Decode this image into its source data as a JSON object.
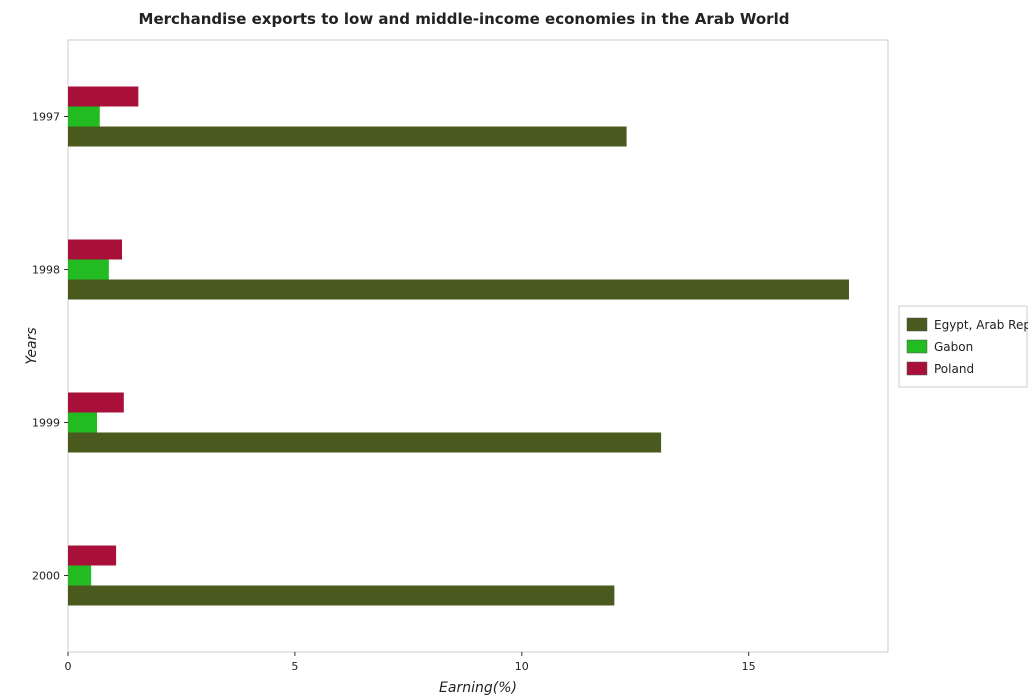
{
  "chart_data": {
    "type": "bar",
    "orientation": "horizontal",
    "title": "Merchandise exports to low and middle-income economies in the Arab World",
    "xlabel": "Earning(%)",
    "ylabel": "Years",
    "categories": [
      "1997",
      "1998",
      "1999",
      "2000"
    ],
    "series": [
      {
        "name": "Egypt, Arab Rep.",
        "color": "#4a5a1e",
        "values": [
          12.31,
          17.21,
          13.07,
          12.04
        ]
      },
      {
        "name": "Gabon",
        "color": "#22bb22",
        "values": [
          0.7,
          0.9,
          0.64,
          0.51
        ]
      },
      {
        "name": "Poland",
        "color": "#a8103a",
        "values": [
          1.55,
          1.19,
          1.23,
          1.06
        ]
      }
    ],
    "xlim": [
      0,
      18.07
    ],
    "xticks": [
      0,
      5,
      10,
      15
    ],
    "grid": false,
    "legend_position": "right"
  }
}
